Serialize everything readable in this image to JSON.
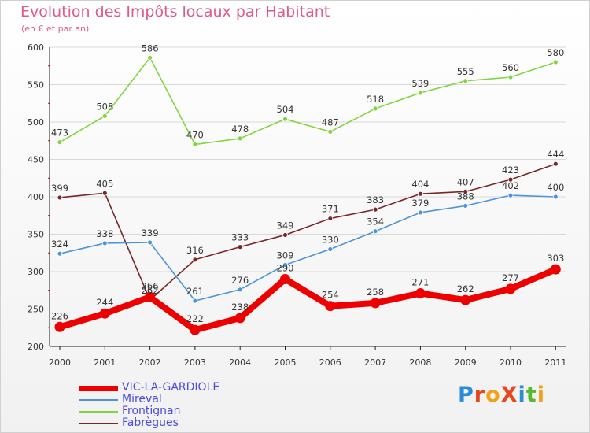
{
  "header": {
    "title": "Evolution des Impôts locaux par Habitant",
    "subtitle": "(en € et par an)"
  },
  "logo": {
    "text": "ProXiti",
    "letters": [
      {
        "ch": "P",
        "color": "#2e8bd6"
      },
      {
        "ch": "r",
        "color": "#e8471e"
      },
      {
        "ch": "o",
        "color": "#f2a11a"
      },
      {
        "ch": "X",
        "color": "#e8471e"
      },
      {
        "ch": "i",
        "color": "#2e8bd6"
      },
      {
        "ch": "t",
        "color": "#58b830"
      },
      {
        "ch": "i",
        "color": "#f2a11a"
      }
    ]
  },
  "chart_data": {
    "type": "line",
    "title": "Evolution des Impôts locaux par Habitant",
    "subtitle": "(en € et par an)",
    "x": [
      "2000",
      "2001",
      "2002",
      "2003",
      "2004",
      "2005",
      "2006",
      "2007",
      "2008",
      "2009",
      "2010",
      "2011"
    ],
    "ylim": [
      200,
      600
    ],
    "yticks": [
      "200",
      "250",
      "300",
      "350",
      "400",
      "450",
      "500",
      "550",
      "600"
    ],
    "grid": true,
    "legend_position": "bottom-left",
    "series": [
      {
        "name": "Frontignan",
        "color": "#80d640",
        "values": [
          473,
          508,
          586,
          470,
          478,
          504,
          487,
          518,
          539,
          555,
          560,
          580
        ]
      },
      {
        "name": "Fabrègues",
        "color": "#7a2626",
        "values": [
          399,
          405,
          262,
          316,
          333,
          349,
          371,
          383,
          404,
          407,
          423,
          444
        ]
      },
      {
        "name": "Mireval",
        "color": "#4d95d8",
        "values": [
          324,
          338,
          339,
          261,
          276,
          309,
          330,
          354,
          379,
          388,
          402,
          400
        ]
      },
      {
        "name": "VIC-LA-GARDIOLE",
        "color": "#ee0000",
        "values": [
          226,
          244,
          266,
          222,
          238,
          290,
          254,
          258,
          271,
          262,
          277,
          303
        ]
      }
    ],
    "legend": [
      "VIC-LA-GARDIOLE",
      "Mireval",
      "Frontignan",
      "Fabrègues"
    ]
  }
}
